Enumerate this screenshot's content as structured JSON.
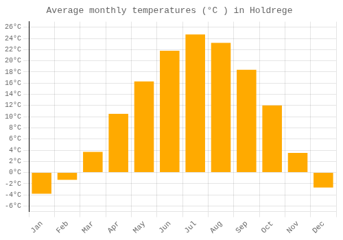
{
  "chart_data": {
    "type": "bar",
    "title": "Average monthly temperatures (°C ) in Holdrege",
    "categories": [
      "Jan",
      "Feb",
      "Mar",
      "Apr",
      "May",
      "Jun",
      "Jul",
      "Aug",
      "Sep",
      "Oct",
      "Nov",
      "Dec"
    ],
    "values": [
      -3.8,
      -1.3,
      3.7,
      10.5,
      16.3,
      21.8,
      24.7,
      23.2,
      18.4,
      12.0,
      3.5,
      -2.7
    ],
    "color": "#FFAA00",
    "ylim": [
      -7,
      27
    ],
    "yticks": [
      {
        "value": -6,
        "label": "-6°C"
      },
      {
        "value": -4,
        "label": "-4°C"
      },
      {
        "value": -2,
        "label": "-2°C"
      },
      {
        "value": 0,
        "label": "0°C"
      },
      {
        "value": 2,
        "label": "2°C"
      },
      {
        "value": 4,
        "label": "4°C"
      },
      {
        "value": 6,
        "label": "6°C"
      },
      {
        "value": 8,
        "label": "8°C"
      },
      {
        "value": 10,
        "label": "10°C"
      },
      {
        "value": 12,
        "label": "12°C"
      },
      {
        "value": 14,
        "label": "14°C"
      },
      {
        "value": 16,
        "label": "16°C"
      },
      {
        "value": 18,
        "label": "18°C"
      },
      {
        "value": 20,
        "label": "20°C"
      },
      {
        "value": 22,
        "label": "22°C"
      },
      {
        "value": 24,
        "label": "24°C"
      },
      {
        "value": 26,
        "label": "26°C"
      }
    ],
    "grid": true
  }
}
